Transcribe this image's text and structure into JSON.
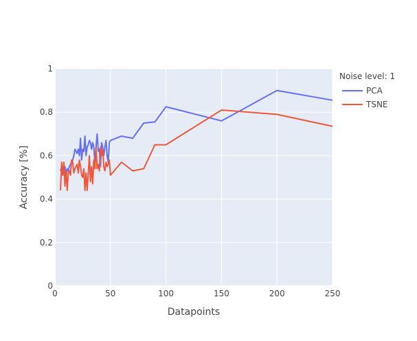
{
  "chart_data": {
    "type": "line",
    "xlabel": "Datapoints",
    "ylabel": "Accuracy [%]",
    "xlim": [
      0,
      250
    ],
    "ylim": [
      0,
      1
    ],
    "xticks": [
      "0",
      "50",
      "100",
      "150",
      "200",
      "250"
    ],
    "yticks": [
      "0",
      "0.2",
      "0.4",
      "0.6",
      "0.8",
      "1"
    ],
    "grid": true,
    "legend": {
      "title": "Noise level: 1",
      "placement": "right"
    },
    "series": [
      {
        "name": "PCA",
        "color": "#636efa",
        "x": [
          5,
          6,
          7,
          8,
          9,
          10,
          11,
          12,
          13,
          14,
          15,
          16,
          17,
          18,
          19,
          20,
          21,
          22,
          23,
          24,
          25,
          26,
          27,
          28,
          29,
          30,
          31,
          32,
          33,
          34,
          35,
          36,
          37,
          38,
          39,
          40,
          41,
          42,
          43,
          44,
          45,
          46,
          47,
          48,
          49,
          50,
          60,
          70,
          80,
          90,
          100,
          150,
          200,
          250
        ],
        "y": [
          0.53,
          0.55,
          0.51,
          0.53,
          0.55,
          0.5,
          0.54,
          0.53,
          0.55,
          0.56,
          0.57,
          0.58,
          0.6,
          0.63,
          0.62,
          0.61,
          0.63,
          0.6,
          0.68,
          0.58,
          0.63,
          0.62,
          0.69,
          0.6,
          0.64,
          0.65,
          0.67,
          0.66,
          0.63,
          0.66,
          0.64,
          0.57,
          0.64,
          0.7,
          0.62,
          0.63,
          0.55,
          0.66,
          0.64,
          0.6,
          0.64,
          0.67,
          0.6,
          0.57,
          0.66,
          0.67,
          0.69,
          0.68,
          0.75,
          0.755,
          0.825,
          0.76,
          0.9,
          0.855
        ]
      },
      {
        "name": "TSNE",
        "color": "#ef553b",
        "x": [
          5,
          6,
          7,
          8,
          9,
          10,
          11,
          12,
          13,
          14,
          15,
          16,
          17,
          18,
          19,
          20,
          21,
          22,
          23,
          24,
          25,
          26,
          27,
          28,
          29,
          30,
          31,
          32,
          33,
          34,
          35,
          36,
          37,
          38,
          39,
          40,
          41,
          42,
          43,
          44,
          45,
          46,
          47,
          48,
          49,
          50,
          60,
          70,
          80,
          90,
          100,
          150,
          200,
          250
        ],
        "y": [
          0.44,
          0.57,
          0.51,
          0.57,
          0.46,
          0.53,
          0.44,
          0.52,
          0.53,
          0.51,
          0.58,
          0.57,
          0.52,
          0.54,
          0.55,
          0.56,
          0.52,
          0.58,
          0.55,
          0.51,
          0.5,
          0.54,
          0.44,
          0.52,
          0.44,
          0.52,
          0.6,
          0.48,
          0.55,
          0.47,
          0.58,
          0.54,
          0.64,
          0.54,
          0.56,
          0.53,
          0.64,
          0.6,
          0.63,
          0.55,
          0.53,
          0.57,
          0.55,
          0.56,
          0.58,
          0.51,
          0.57,
          0.53,
          0.54,
          0.65,
          0.65,
          0.81,
          0.79,
          0.735
        ]
      }
    ]
  }
}
